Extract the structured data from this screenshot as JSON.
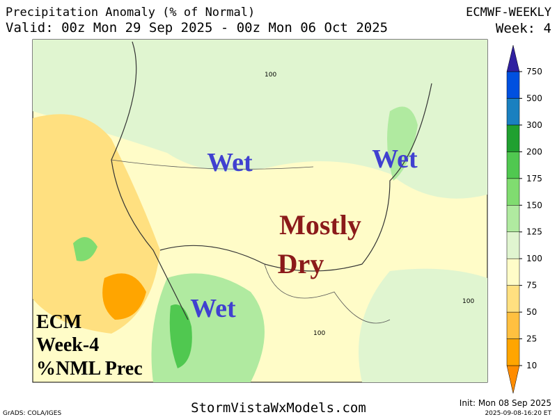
{
  "header": {
    "title": "Precipitation Anomaly (% of Normal)",
    "valid": "Valid: 00z Mon 29 Sep 2025 - 00z Mon 06 Oct 2025",
    "model": "ECMWF-WEEKLY",
    "week": "Week: 4"
  },
  "annotations": {
    "wet_north": "Wet",
    "wet_east": "Wet",
    "wet_south": "Wet",
    "dry_line1": "Mostly",
    "dry_line2": "Dry",
    "ecm_line1": "ECM",
    "ecm_line2": "Week-4",
    "ecm_line3": "%NML Prec"
  },
  "contour_labels": [
    "100",
    "100",
    "100"
  ],
  "colorbar": {
    "levels": [
      10,
      25,
      50,
      75,
      100,
      125,
      150,
      175,
      200,
      300,
      500,
      750
    ],
    "colors": [
      "#ff8c00",
      "#ffa500",
      "#ffc040",
      "#ffe080",
      "#fffcc8",
      "#e0f5d0",
      "#b0eaa0",
      "#80dc70",
      "#50c850",
      "#20a030",
      "#1a80c0",
      "#0050e0",
      "#3020a0"
    ]
  },
  "footer": {
    "site": "StormVistaWxModels.com",
    "init": "Init: Mon 08 Sep 2025",
    "credit": "GrADS: COLA/IGES",
    "timestamp": "2025-09-08-16:20 ET"
  }
}
